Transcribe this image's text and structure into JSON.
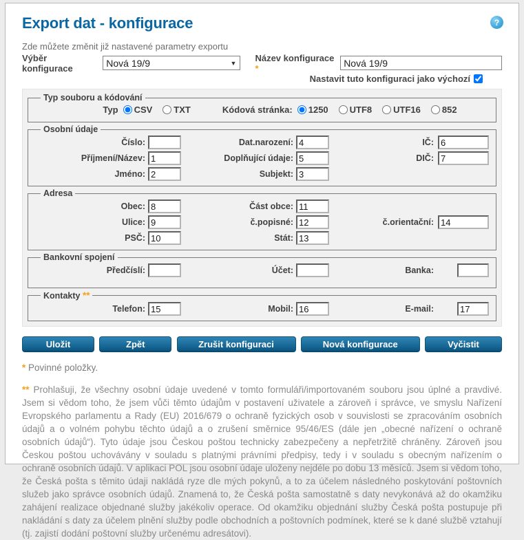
{
  "header": {
    "title": "Export dat - konfigurace",
    "subtitle": "Zde můžete změnit již nastavené parametry exportu",
    "help_icon": "?"
  },
  "config_row": {
    "select_label": "Výběr konfigurace",
    "select_value": "Nová 19/9",
    "name_label": "Název konfigurace",
    "required_mark": "*",
    "name_value": "Nová 19/9",
    "default_label": "Nastavit tuto konfiguraci jako výchozí",
    "default_checked": true
  },
  "file_type": {
    "legend": "Typ souboru a kódování",
    "type_label": "Typ",
    "type_options": [
      {
        "label": "CSV",
        "selected": true
      },
      {
        "label": "TXT",
        "selected": false
      }
    ],
    "encoding_label": "Kódová stránka:",
    "encoding_options": [
      {
        "label": "1250",
        "selected": true
      },
      {
        "label": "UTF8",
        "selected": false
      },
      {
        "label": "UTF16",
        "selected": false
      },
      {
        "label": "852",
        "selected": false
      }
    ]
  },
  "personal": {
    "legend": "Osobní údaje",
    "rows": [
      {
        "c1_label": "Číslo:",
        "c1_value": "",
        "c2_label": "Dat.narození:",
        "c2_value": "4",
        "c3_label": "IČ:",
        "c3_value": "6"
      },
      {
        "c1_label": "Příjmení/Název:",
        "c1_value": "1",
        "c2_label": "Doplňující údaje:",
        "c2_value": "5",
        "c3_label": "DIČ:",
        "c3_value": "7"
      },
      {
        "c1_label": "Jméno:",
        "c1_value": "2",
        "c2_label": "Subjekt:",
        "c2_value": "3"
      }
    ]
  },
  "address": {
    "legend": "Adresa",
    "rows": [
      {
        "c1_label": "Obec:",
        "c1_value": "8",
        "c2_label": "Část obce:",
        "c2_value": "11"
      },
      {
        "c1_label": "Ulice:",
        "c1_value": "9",
        "c2_label": "č.popisné:",
        "c2_value": "12",
        "c3_label": "č.orientační:",
        "c3_value": "14"
      },
      {
        "c1_label": "PSČ:",
        "c1_value": "10",
        "c2_label": "Stát:",
        "c2_value": "13"
      }
    ]
  },
  "bank": {
    "legend": "Bankovní spojení",
    "rows": [
      {
        "c1_label": "Předčíslí:",
        "c1_value": "",
        "c2_label": "Účet:",
        "c2_value": "",
        "c3_label": "Banka:",
        "c3_value": ""
      }
    ]
  },
  "contacts": {
    "legend": "Kontakty",
    "mark": "**",
    "rows": [
      {
        "c1_label": "Telefon:",
        "c1_value": "15",
        "c2_label": "Mobil:",
        "c2_value": "16",
        "c3_label": "E-mail:",
        "c3_value": "17"
      }
    ]
  },
  "buttons": {
    "save": "Uložit",
    "back": "Zpět",
    "cancel_config": "Zrušit konfiguraci",
    "new_config": "Nová konfigurace",
    "clear": "Vyčistit"
  },
  "footer": {
    "required_mark": "*",
    "required_note": "Povinné položky.",
    "consent_mark": "**",
    "consent_text": "Prohlašuji, že všechny osobní údaje uvedené v tomto formuláři/importovaném souboru jsou úplné a pravdivé. Jsem si vědom toho, že jsem vůči těmto údajům v postavení uživatele a zároveň i správce, ve smyslu Nařízení Evropského parlamentu a Rady (EU) 2016/679 o ochraně fyzických osob v souvislosti se zpracováním osobních údajů a o volném pohybu těchto údajů a o zrušení směrnice 95/46/ES (dále jen „obecné nařízení o ochraně osobních údajů“). Tyto údaje jsou Českou poštou technicky zabezpečeny a nepřetržitě chráněny. Zároveň jsou Českou poštou uchovávány v souladu s platnými právními předpisy, tedy i v souladu s obecným nařízením o ochraně osobních údajů. V aplikaci POL jsou osobní údaje uloženy nejdéle po dobu 13 měsíců. Jsem si vědom toho, že Česká pošta s těmito údaji nakládá ryze dle mých pokynů, a to za účelem následného poskytování poštovních služeb jako správce osobních údajů. Znamená to, že Česká pošta samostatně s daty nevykonává až do okamžiku zahájení realizace objednané služby jakékoliv operace. Od okamžiku objednání služby Česká pošta postupuje při nakládání s daty za účelem plnění služby podle obchodních a poštovních podmínek, které se k dané službě vztahují (tj. zajistí dodání poštovní služby určenému adresátovi)."
  },
  "colors": {
    "accent_blue": "#0a67a3",
    "button_blue": "#13618e",
    "orange": "#f6a01b",
    "panel_gray": "#f1f1f1"
  }
}
